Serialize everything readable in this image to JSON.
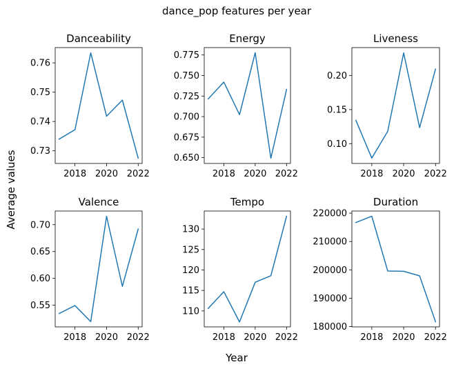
{
  "figure": {
    "title": "dance_pop features per year",
    "xlabel": "Year",
    "ylabel": "Average values",
    "line_color": "#1f77b4"
  },
  "chart_data": [
    {
      "type": "line",
      "title": "Danceability",
      "x": [
        2017,
        2018,
        2019,
        2020,
        2021,
        2022
      ],
      "y": [
        0.734,
        0.7372,
        0.7634,
        0.7418,
        0.7473,
        0.7275
      ],
      "xlim": [
        2016.75,
        2022.25
      ],
      "ylim": [
        0.7257,
        0.7652
      ],
      "xticks": [
        2018,
        2020,
        2022
      ],
      "xtick_labels": [
        "2018",
        "2020",
        "2022"
      ],
      "yticks": [
        0.73,
        0.74,
        0.75,
        0.76
      ],
      "ytick_labels": [
        "0.73",
        "0.74",
        "0.75",
        "0.76"
      ]
    },
    {
      "type": "line",
      "title": "Energy",
      "x": [
        2017,
        2018,
        2019,
        2020,
        2021,
        2022
      ],
      "y": [
        0.7215,
        0.742,
        0.7023,
        0.7778,
        0.6493,
        0.7331
      ],
      "xlim": [
        2016.75,
        2022.25
      ],
      "ylim": [
        0.643,
        0.784
      ],
      "xticks": [
        2018,
        2020,
        2022
      ],
      "xtick_labels": [
        "2018",
        "2020",
        "2022"
      ],
      "yticks": [
        0.65,
        0.675,
        0.7,
        0.725,
        0.75,
        0.775
      ],
      "ytick_labels": [
        "0.650",
        "0.675",
        "0.700",
        "0.725",
        "0.750",
        "0.775"
      ]
    },
    {
      "type": "line",
      "title": "Liveness",
      "x": [
        2017,
        2018,
        2019,
        2020,
        2021,
        2022
      ],
      "y": [
        0.1343,
        0.0788,
        0.1182,
        0.2332,
        0.1236,
        0.2094
      ],
      "xlim": [
        2016.75,
        2022.25
      ],
      "ylim": [
        0.071,
        0.241
      ],
      "xticks": [
        2018,
        2020,
        2022
      ],
      "xtick_labels": [
        "2018",
        "2020",
        "2022"
      ],
      "yticks": [
        0.1,
        0.15,
        0.2
      ],
      "ytick_labels": [
        "0.10",
        "0.15",
        "0.20"
      ]
    },
    {
      "type": "line",
      "title": "Valence",
      "x": [
        2017,
        2018,
        2019,
        2020,
        2021,
        2022
      ],
      "y": [
        0.5346,
        0.5494,
        0.5195,
        0.7156,
        0.5851,
        0.6919
      ],
      "xlim": [
        2016.75,
        2022.25
      ],
      "ylim": [
        0.5097,
        0.7254
      ],
      "xticks": [
        2018,
        2020,
        2022
      ],
      "xtick_labels": [
        "2018",
        "2020",
        "2022"
      ],
      "yticks": [
        0.55,
        0.6,
        0.65,
        0.7
      ],
      "ytick_labels": [
        "0.55",
        "0.60",
        "0.65",
        "0.70"
      ]
    },
    {
      "type": "line",
      "title": "Tempo",
      "x": [
        2017,
        2018,
        2019,
        2020,
        2021,
        2022
      ],
      "y": [
        110.6,
        114.7,
        107.3,
        117.0,
        118.6,
        133.1
      ],
      "xlim": [
        2016.75,
        2022.25
      ],
      "ylim": [
        106.1,
        134.4
      ],
      "xticks": [
        2018,
        2020,
        2022
      ],
      "xtick_labels": [
        "2018",
        "2020",
        "2022"
      ],
      "yticks": [
        110,
        115,
        120,
        125,
        130
      ],
      "ytick_labels": [
        "110",
        "115",
        "120",
        "125",
        "130"
      ]
    },
    {
      "type": "line",
      "title": "Duration",
      "x": [
        2017,
        2018,
        2019,
        2020,
        2021,
        2022
      ],
      "y": [
        216700,
        218900,
        199600,
        199500,
        197900,
        181700
      ],
      "xlim": [
        2016.75,
        2022.25
      ],
      "ylim": [
        179900,
        220750
      ],
      "xticks": [
        2018,
        2020,
        2022
      ],
      "xtick_labels": [
        "2018",
        "2020",
        "2022"
      ],
      "yticks": [
        180000,
        190000,
        200000,
        210000,
        220000
      ],
      "ytick_labels": [
        "180000",
        "190000",
        "200000",
        "210000",
        "220000"
      ]
    }
  ]
}
